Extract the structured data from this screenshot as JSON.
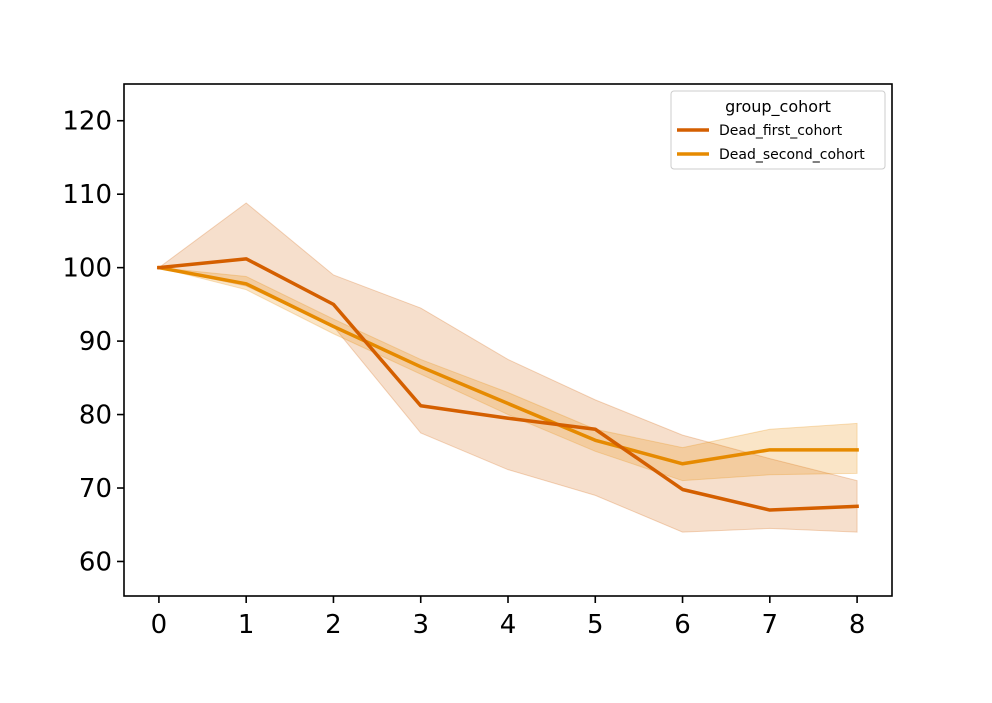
{
  "chart_data": {
    "type": "line",
    "title": "",
    "xlabel": "",
    "ylabel": "",
    "x": [
      0,
      1,
      2,
      3,
      4,
      5,
      6,
      7,
      8
    ],
    "xlim": [
      -0.4,
      8.4
    ],
    "ylim": [
      55.3,
      125
    ],
    "x_ticks": [
      0,
      1,
      2,
      3,
      4,
      5,
      6,
      7,
      8
    ],
    "y_ticks": [
      60,
      70,
      80,
      90,
      100,
      110,
      120
    ],
    "grid": false,
    "legend": {
      "title": "group_cohort",
      "placement": "top-right"
    },
    "series": [
      {
        "name": "Dead_first_cohort",
        "color": "#d45f00",
        "values": [
          100,
          101.2,
          95,
          81.2,
          79.5,
          78,
          69.8,
          67,
          67.5
        ],
        "ci_lower": [
          100,
          97.5,
          92,
          77.5,
          72.5,
          69,
          64,
          64.5,
          64
        ],
        "ci_upper": [
          100,
          108.8,
          99,
          94.5,
          87.5,
          82,
          77.2,
          74,
          71
        ]
      },
      {
        "name": "Dead_second_cohort",
        "color": "#e68a00",
        "values": [
          100,
          97.8,
          92,
          86.5,
          81.5,
          76.5,
          73.3,
          75.2,
          75.2
        ],
        "ci_lower": [
          100,
          97,
          91,
          85.5,
          80,
          75,
          71,
          71.8,
          72
        ],
        "ci_upper": [
          100,
          98.8,
          93,
          87.5,
          83,
          78,
          75.5,
          78,
          78.8
        ]
      }
    ]
  }
}
